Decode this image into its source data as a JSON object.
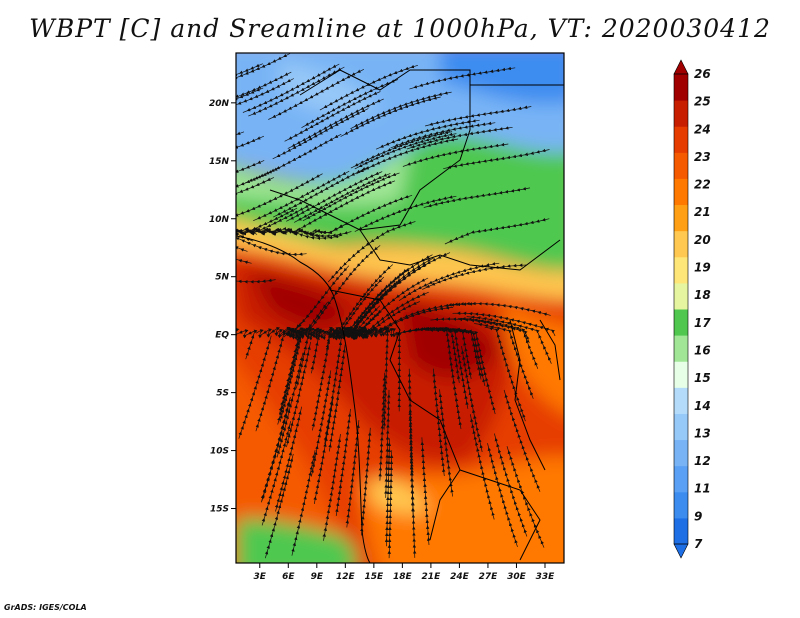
{
  "title": "WBPT [C] and Sreamline at 1000hPa, VT: 2020030412",
  "credit": "GrADS: IGES/COLA",
  "map": {
    "lon_ticks": [
      {
        "lon": 3,
        "label": "3E"
      },
      {
        "lon": 6,
        "label": "6E"
      },
      {
        "lon": 9,
        "label": "9E"
      },
      {
        "lon": 12,
        "label": "12E"
      },
      {
        "lon": 15,
        "label": "15E"
      },
      {
        "lon": 18,
        "label": "18E"
      },
      {
        "lon": 21,
        "label": "21E"
      },
      {
        "lon": 24,
        "label": "24E"
      },
      {
        "lon": 27,
        "label": "27E"
      },
      {
        "lon": 30,
        "label": "30E"
      },
      {
        "lon": 33,
        "label": "33E"
      }
    ],
    "lat_ticks": [
      {
        "lat": 20,
        "label": "20N"
      },
      {
        "lat": 15,
        "label": "15N"
      },
      {
        "lat": 10,
        "label": "10N"
      },
      {
        "lat": 5,
        "label": "5N"
      },
      {
        "lat": 0,
        "label": "EQ"
      },
      {
        "lat": -5,
        "label": "5S"
      },
      {
        "lat": -10,
        "label": "10S"
      },
      {
        "lat": -15,
        "label": "15S"
      }
    ],
    "extent": {
      "lon_min": 0.5,
      "lon_max": 35,
      "lat_min": -19.7,
      "lat_max": 24.3
    }
  },
  "colorbar": {
    "labels": [
      "7",
      "9",
      "11",
      "12",
      "13",
      "14",
      "15",
      "16",
      "17",
      "18",
      "19",
      "20",
      "21",
      "22",
      "23",
      "24",
      "25",
      "26"
    ],
    "colors": [
      "#1e6ee6",
      "#3c8cf0",
      "#5aa0f5",
      "#78b4f5",
      "#96c8f8",
      "#b4dcfa",
      "#e6ffe6",
      "#a0e696",
      "#50c850",
      "#e6f5a0",
      "#ffe678",
      "#ffc850",
      "#ffa014",
      "#ff7800",
      "#f55a00",
      "#e63c00",
      "#c81e00",
      "#a00000"
    ],
    "cap_low_color": "#1e6ee6",
    "cap_high_color": "#a00000"
  }
}
